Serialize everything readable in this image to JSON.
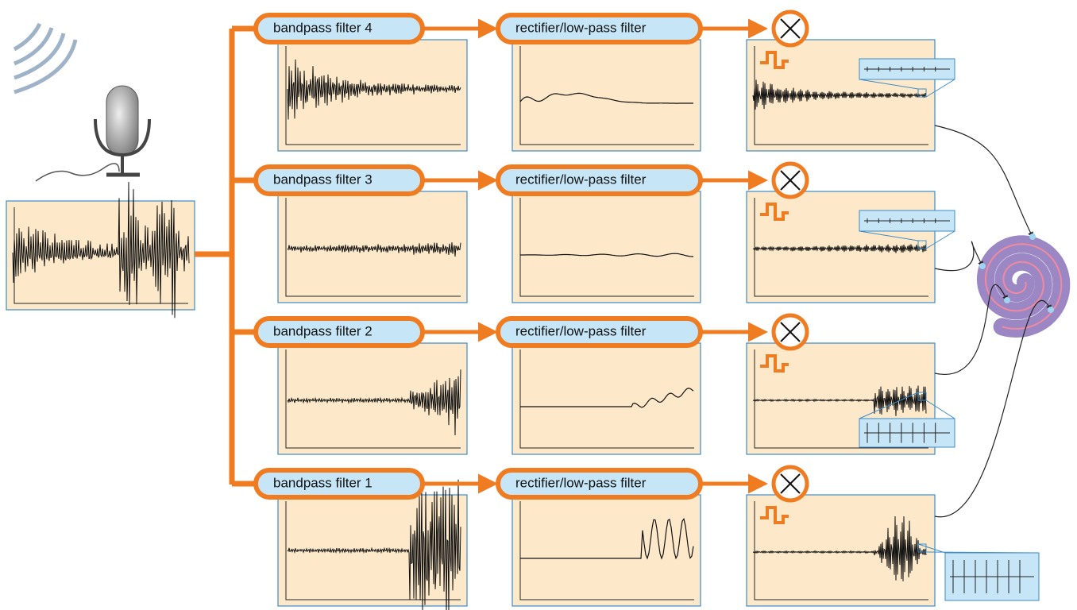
{
  "rows": [
    {
      "filter": "bandpass filter 4",
      "stage": "rectifier/low-pass filter"
    },
    {
      "filter": "bandpass filter 3",
      "stage": "rectifier/low-pass filter"
    },
    {
      "filter": "bandpass filter 2",
      "stage": "rectifier/low-pass filter"
    },
    {
      "filter": "bandpass filter 1",
      "stage": "rectifier/low-pass filter"
    }
  ]
}
